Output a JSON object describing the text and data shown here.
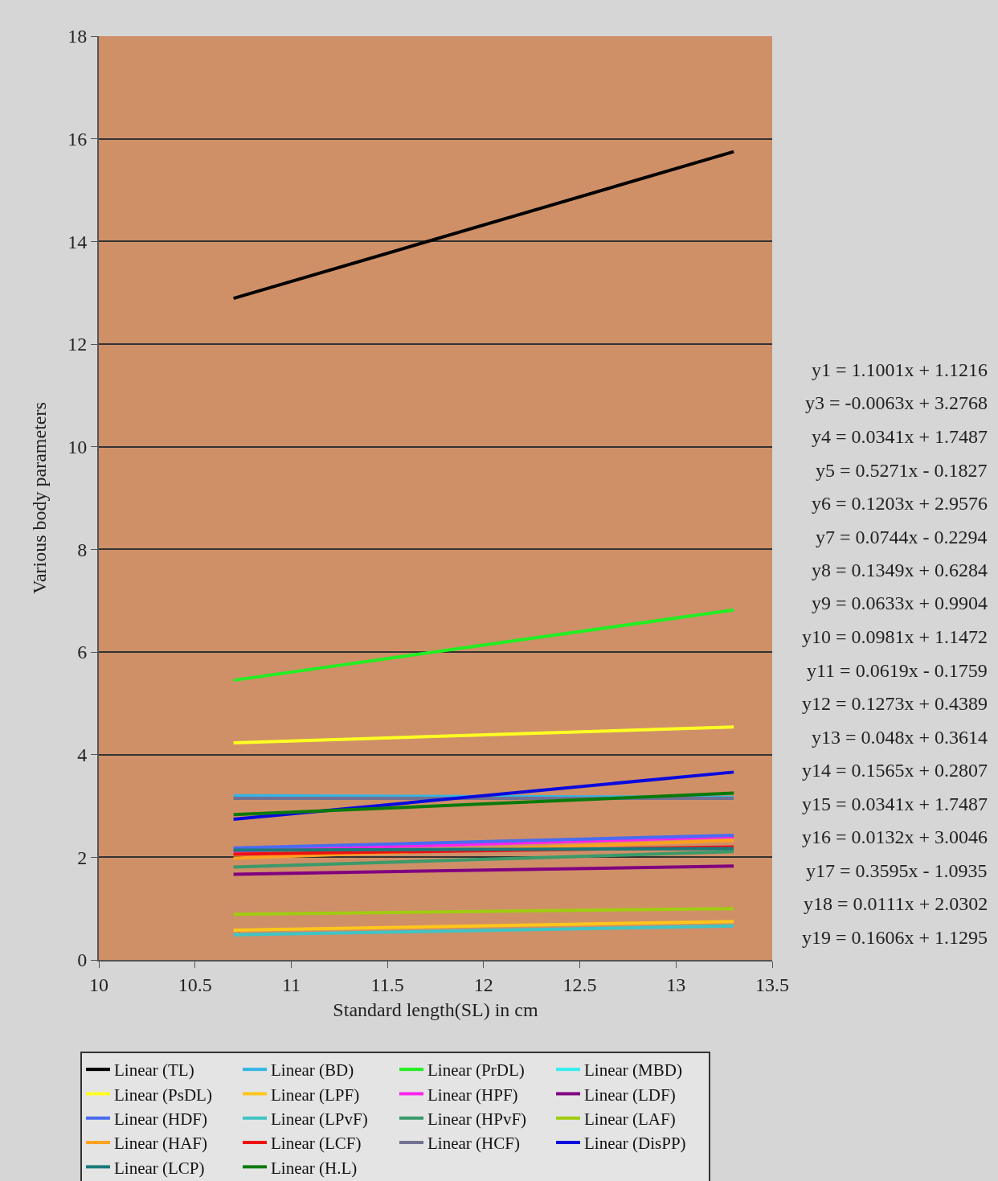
{
  "chart_data": {
    "type": "line",
    "xlabel": "Standard length(SL) in cm",
    "ylabel": "Various body parameters",
    "x": [
      10.7,
      13.3
    ],
    "xlim": [
      10,
      13.5
    ],
    "xticks": [
      10,
      10.5,
      11,
      11.5,
      12,
      12.5,
      13,
      13.5
    ],
    "ylim": [
      0,
      18
    ],
    "yticks": [
      0,
      2,
      4,
      6,
      8,
      10,
      12,
      14,
      16,
      18
    ],
    "grid": "y",
    "legend": "bottom",
    "marker": "none",
    "line_style": "solid",
    "series": [
      {
        "name": "Linear (TL)",
        "color": "#000000",
        "values": [
          12.89,
          15.75
        ]
      },
      {
        "name": "Linear (BD)",
        "color": "#33b5e5",
        "values": [
          3.2,
          3.17
        ]
      },
      {
        "name": "Linear (PrDL)",
        "color": "#22ee22",
        "values": [
          5.45,
          6.82
        ]
      },
      {
        "name": "Linear (MBD)",
        "color": "#33eeee",
        "values": [
          null,
          null
        ]
      },
      {
        "name": "Linear (PsDL)",
        "color": "#ffff22",
        "values": [
          4.23,
          4.54
        ]
      },
      {
        "name": "Linear (LPF)",
        "color": "#ffc61a",
        "values": [
          0.58,
          0.75
        ]
      },
      {
        "name": "Linear (HPF)",
        "color": "#ff22ee",
        "values": [
          2.12,
          2.4
        ]
      },
      {
        "name": "Linear (LDF)",
        "color": "#800080",
        "values": [
          1.67,
          1.83
        ]
      },
      {
        "name": "Linear (HDF)",
        "color": "#4a6cf0",
        "values": [
          2.18,
          2.43
        ]
      },
      {
        "name": "Linear (LPvF)",
        "color": "#40c4c4",
        "values": [
          0.49,
          0.66
        ]
      },
      {
        "name": "Linear (HPvF)",
        "color": "#3a9a6a",
        "values": [
          1.81,
          2.11
        ]
      },
      {
        "name": "Linear (LAF)",
        "color": "#a0cc10",
        "values": [
          0.89,
          1.0
        ]
      },
      {
        "name": "Linear (HAF)",
        "color": "#ffa020",
        "values": [
          1.98,
          2.33
        ]
      },
      {
        "name": "Linear (LCF)",
        "color": "#ee1111",
        "values": [
          2.06,
          2.2
        ]
      },
      {
        "name": "Linear (HCF)",
        "color": "#707090",
        "values": [
          3.15,
          3.15
        ]
      },
      {
        "name": "Linear (DisPP)",
        "color": "#0a0adc",
        "values": [
          2.74,
          3.66
        ]
      },
      {
        "name": "Linear (LCP)",
        "color": "#1a7a7a",
        "values": [
          2.14,
          2.17
        ]
      },
      {
        "name": "Linear (H.L)",
        "color": "#0a7a0a",
        "values": [
          2.83,
          3.25
        ]
      }
    ],
    "annotations": [
      "y1 = 1.1001x + 1.1216",
      "y3 = -0.0063x + 3.2768",
      "y4 = 0.0341x + 1.7487",
      "y5 = 0.5271x - 0.1827",
      "y6 = 0.1203x + 2.9576",
      "y7 = 0.0744x - 0.2294",
      "y8 = 0.1349x + 0.6284",
      "y9 = 0.0633x + 0.9904",
      "y10 = 0.0981x + 1.1472",
      "y11 = 0.0619x - 0.1759",
      "y12 = 0.1273x + 0.4389",
      "y13 = 0.048x + 0.3614",
      "y14 = 0.1565x + 0.2807",
      "y15 = 0.0341x + 1.7487",
      "y16 = 0.0132x + 3.0046",
      "y17 = 0.3595x - 1.0935",
      "y18 = 0.0111x + 2.0302",
      "y19 = 0.1606x + 1.1295"
    ]
  }
}
